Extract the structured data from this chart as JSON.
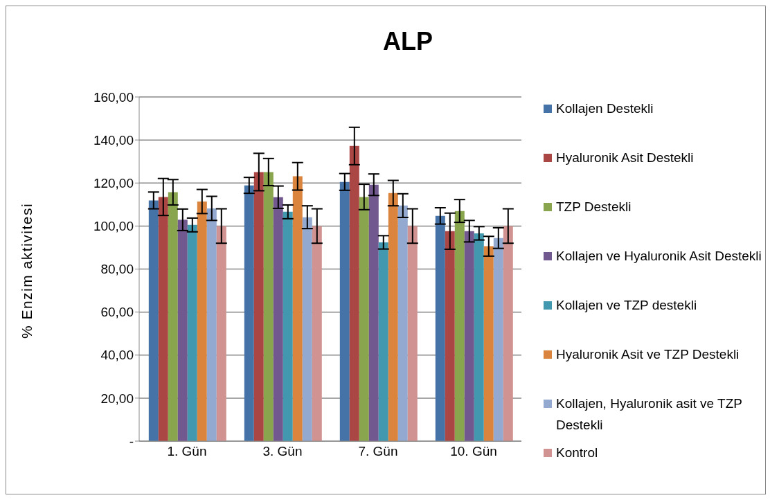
{
  "chart_data": {
    "type": "bar",
    "title": "ALP",
    "ylabel": "% Enzim aktivitesi",
    "categories": [
      "1. Gün",
      "3. Gün",
      "7. Gün",
      "10. Gün"
    ],
    "series": [
      {
        "name": "Kollajen Destekli",
        "color": "#4572a7",
        "values": [
          111.9,
          118.9,
          120.5,
          104.7
        ],
        "errors": [
          3.9,
          3.7,
          3.9,
          3.8
        ]
      },
      {
        "name": "Hyaluronik Asit Destekli",
        "color": "#aa4643",
        "values": [
          113.5,
          125.1,
          137.2,
          97.6
        ],
        "errors": [
          8.6,
          8.7,
          8.7,
          8.4
        ]
      },
      {
        "name": "TZP Destekli",
        "color": "#89a54e",
        "values": [
          115.7,
          125.1,
          113.5,
          107
        ],
        "errors": [
          5.9,
          6.3,
          5.9,
          5.3
        ]
      },
      {
        "name": "Kollajen ve Hyaluronik Asit Destekli",
        "color": "#71588f",
        "values": [
          102.9,
          113.4,
          119.2,
          97.6
        ],
        "errors": [
          5,
          5.2,
          5,
          5
        ]
      },
      {
        "name": "Kollajen ve TZP destekli",
        "color": "#4198af",
        "values": [
          100.5,
          106.6,
          92.4,
          96.6
        ],
        "errors": [
          3.2,
          3.2,
          3.1,
          3.1
        ]
      },
      {
        "name": "Hyaluronik Asit ve TZP Destekli",
        "color": "#db843d",
        "values": [
          111.4,
          123.1,
          115.3,
          90.6
        ],
        "errors": [
          5.6,
          6.4,
          5.9,
          4.6
        ]
      },
      {
        "name": "Kollajen, Hyaluronik asit ve TZP Destekli",
        "color": "#93a9cf",
        "values": [
          108.2,
          104.1,
          109.5,
          94.4
        ],
        "errors": [
          5.6,
          5.3,
          5.5,
          4.8
        ]
      },
      {
        "name": "Kontrol",
        "color": "#d19392",
        "values": [
          100,
          100,
          100,
          100
        ],
        "errors": [
          8,
          8,
          8,
          8
        ]
      }
    ],
    "ylim": [
      0,
      160
    ],
    "yticks": [
      {
        "value": 0,
        "label": "-"
      },
      {
        "value": 20,
        "label": "20,00"
      },
      {
        "value": 40,
        "label": "40,00"
      },
      {
        "value": 60,
        "label": "60,00"
      },
      {
        "value": 80,
        "label": "80,00"
      },
      {
        "value": 100,
        "label": "100,00"
      },
      {
        "value": 120,
        "label": "120,00"
      },
      {
        "value": 140,
        "label": "140,00"
      },
      {
        "value": 160,
        "label": "160,00"
      }
    ],
    "grid": "y",
    "legend": "right"
  }
}
